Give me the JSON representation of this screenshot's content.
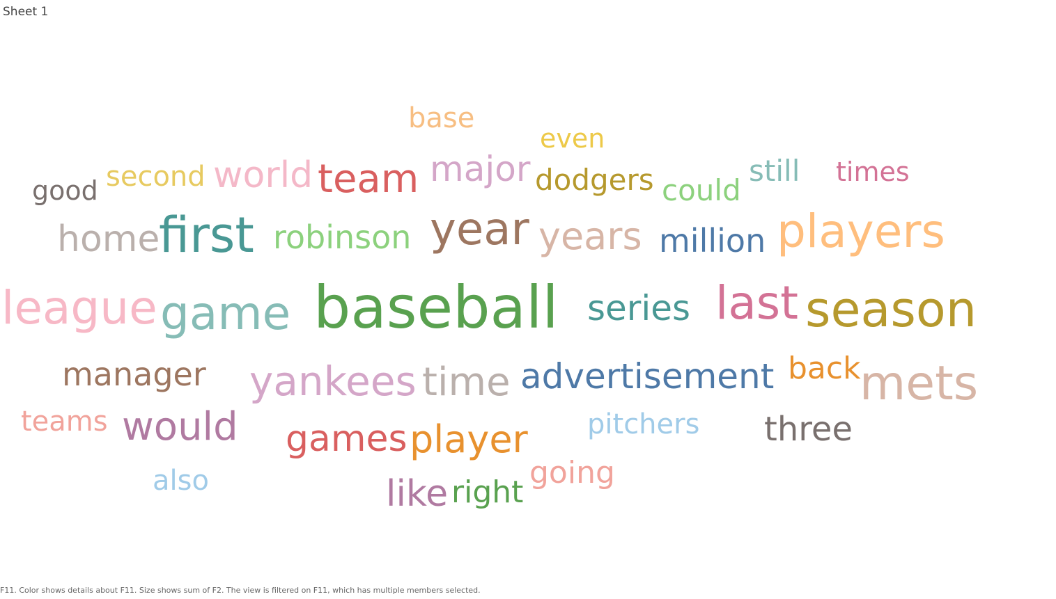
{
  "sheet": {
    "title": "Sheet 1"
  },
  "footnote": "F11.  Color shows details about F11.  Size shows sum of F2. The view is filtered on F11, which has multiple members selected.",
  "chart_data": {
    "type": "word_cloud",
    "words": [
      {
        "text": "base",
        "color": "#f7be82"
      },
      {
        "text": "even",
        "color": "#edc948"
      },
      {
        "text": "good",
        "color": "#79706e"
      },
      {
        "text": "second",
        "color": "#e7ca60"
      },
      {
        "text": "world",
        "color": "#f4b8c8"
      },
      {
        "text": "team",
        "color": "#d95f5f"
      },
      {
        "text": "major",
        "color": "#d4a6c8"
      },
      {
        "text": "dodgers",
        "color": "#b6992d"
      },
      {
        "text": "could",
        "color": "#8cd17d"
      },
      {
        "text": "still",
        "color": "#86bcb6"
      },
      {
        "text": "times",
        "color": "#d37295"
      },
      {
        "text": "home",
        "color": "#bab0ac"
      },
      {
        "text": "first",
        "color": "#499894"
      },
      {
        "text": "robinson",
        "color": "#8cd17d"
      },
      {
        "text": "year",
        "color": "#9d7660"
      },
      {
        "text": "years",
        "color": "#d7b5a6"
      },
      {
        "text": "million",
        "color": "#4e79a7"
      },
      {
        "text": "players",
        "color": "#ffbe7d"
      },
      {
        "text": "league",
        "color": "#f7b8c6"
      },
      {
        "text": "game",
        "color": "#86bcb6"
      },
      {
        "text": "baseball",
        "color": "#59a14f"
      },
      {
        "text": "series",
        "color": "#499894"
      },
      {
        "text": "last",
        "color": "#d37295"
      },
      {
        "text": "season",
        "color": "#b6992d"
      },
      {
        "text": "manager",
        "color": "#9d7660"
      },
      {
        "text": "yankees",
        "color": "#d4a6c8"
      },
      {
        "text": "time",
        "color": "#bab0ac"
      },
      {
        "text": "advertisement",
        "color": "#4e79a7"
      },
      {
        "text": "back",
        "color": "#e8912e"
      },
      {
        "text": "mets",
        "color": "#d7b5a6"
      },
      {
        "text": "teams",
        "color": "#f1a39b"
      },
      {
        "text": "would",
        "color": "#b07aa1"
      },
      {
        "text": "games",
        "color": "#d95f5f"
      },
      {
        "text": "player",
        "color": "#e8912e"
      },
      {
        "text": "pitchers",
        "color": "#a0cbe8"
      },
      {
        "text": "three",
        "color": "#79706e"
      },
      {
        "text": "also",
        "color": "#a0cbe8"
      },
      {
        "text": "like",
        "color": "#b07aa1"
      },
      {
        "text": "right",
        "color": "#59a14f"
      },
      {
        "text": "going",
        "color": "#f1a39b"
      }
    ]
  }
}
